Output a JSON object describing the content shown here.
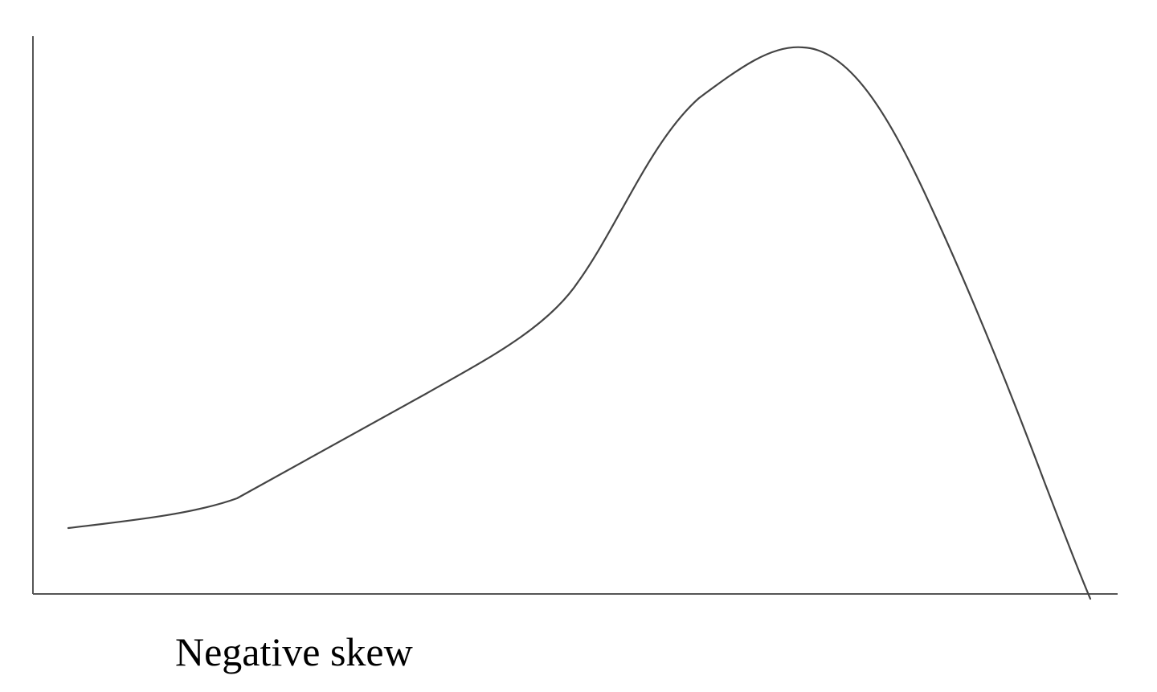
{
  "caption": "Negative skew",
  "colors": {
    "background": "#ffffff",
    "line": "#444444",
    "axis": "#555555",
    "text": "#000000"
  },
  "curve": {
    "shape": "negatively-skewed-distribution",
    "long_tail_side": "left",
    "peak_side": "right"
  }
}
